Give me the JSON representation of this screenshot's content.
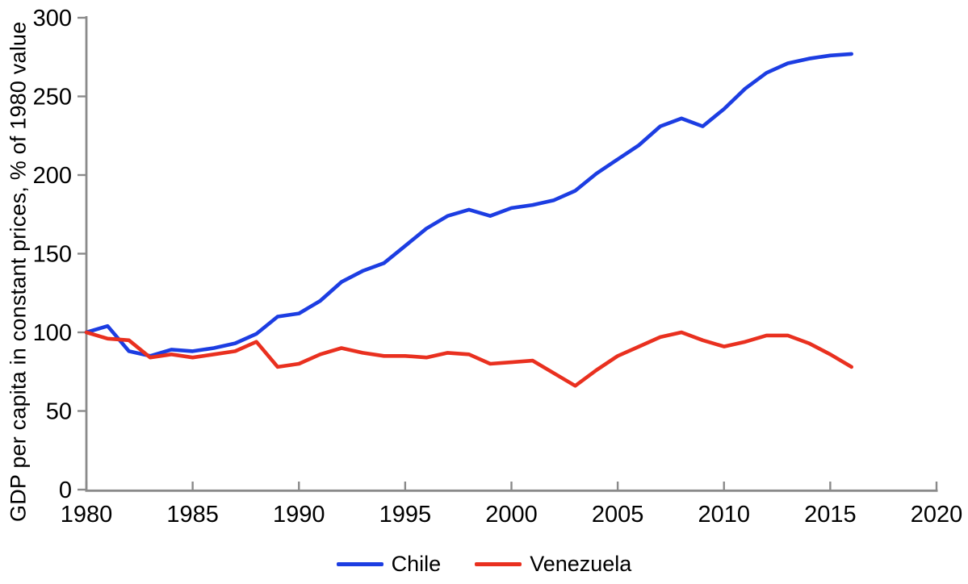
{
  "chart_data": {
    "type": "line",
    "title": "",
    "xlabel": "",
    "ylabel": "GDP per capita in constant prices, % of 1980 value",
    "xlim": [
      1980,
      2020
    ],
    "ylim": [
      0,
      300
    ],
    "x_ticks": [
      1980,
      1985,
      1990,
      1995,
      2000,
      2005,
      2010,
      2015,
      2020
    ],
    "y_ticks": [
      0,
      50,
      100,
      150,
      200,
      250,
      300
    ],
    "grid": false,
    "legend_position": "bottom-center",
    "axis_color": "#8a8a8a",
    "text_color": "#000000",
    "years": [
      1980,
      1981,
      1982,
      1983,
      1984,
      1985,
      1986,
      1987,
      1988,
      1989,
      1990,
      1991,
      1992,
      1993,
      1994,
      1995,
      1996,
      1997,
      1998,
      1999,
      2000,
      2001,
      2002,
      2003,
      2004,
      2005,
      2006,
      2007,
      2008,
      2009,
      2010,
      2011,
      2012,
      2013,
      2014,
      2015,
      2016
    ],
    "series": [
      {
        "name": "Chile",
        "color": "#1c3de2",
        "values": [
          100,
          104,
          88,
          85,
          89,
          88,
          90,
          93,
          99,
          110,
          112,
          120,
          132,
          139,
          144,
          155,
          166,
          174,
          178,
          174,
          179,
          181,
          184,
          190,
          201,
          210,
          219,
          231,
          236,
          231,
          242,
          255,
          265,
          271,
          274,
          276,
          277
        ]
      },
      {
        "name": "Venezuela",
        "color": "#e9301f",
        "values": [
          100,
          96,
          95,
          84,
          86,
          84,
          86,
          88,
          94,
          78,
          80,
          86,
          90,
          87,
          85,
          85,
          84,
          87,
          86,
          80,
          81,
          82,
          74,
          66,
          76,
          85,
          91,
          97,
          100,
          95,
          91,
          94,
          98,
          98,
          93,
          86,
          78
        ]
      }
    ]
  }
}
